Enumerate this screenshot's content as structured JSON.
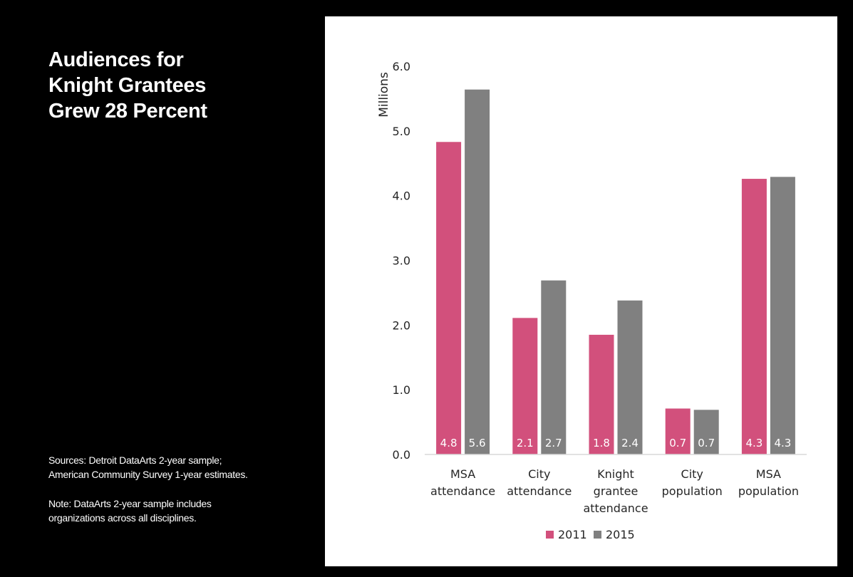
{
  "headline": {
    "lines": [
      "Audiences for",
      "Knight Grantees",
      "Grew 28 Percent"
    ]
  },
  "notes": {
    "sources": "Sources: Detroit DataArts 2-year sample; American Community Survey 1-year estimates.",
    "note": "Note: DataArts 2-year sample includes organizations across all disciplines."
  },
  "chart_data": {
    "type": "bar",
    "ylabel": "Millions",
    "ylim": [
      0,
      6
    ],
    "yticks": [
      "0.0",
      "1.0",
      "2.0",
      "3.0",
      "4.0",
      "5.0",
      "6.0"
    ],
    "grid": false,
    "legend_position": "bottom",
    "categories": [
      [
        "MSA",
        "attendance"
      ],
      [
        "City",
        "attendance"
      ],
      [
        "Knight",
        "grantee",
        "attendance"
      ],
      [
        "City",
        "population"
      ],
      [
        "MSA",
        "population"
      ]
    ],
    "series": [
      {
        "name": "2011",
        "color": "#d2507c",
        "values": [
          4.83,
          2.11,
          1.85,
          0.71,
          4.26
        ],
        "labels": [
          "4.8",
          "2.1",
          "1.8",
          "0.7",
          "4.3"
        ]
      },
      {
        "name": "2015",
        "color": "#808080",
        "values": [
          5.64,
          2.69,
          2.38,
          0.69,
          4.29
        ],
        "labels": [
          "5.6",
          "2.7",
          "2.4",
          "0.7",
          "4.3"
        ]
      }
    ]
  }
}
